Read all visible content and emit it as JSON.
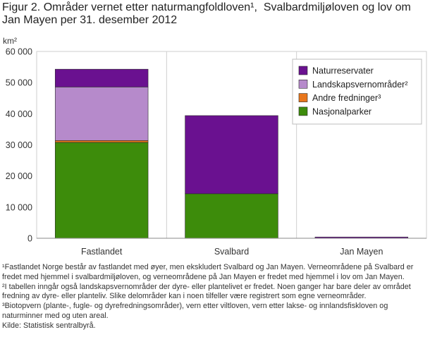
{
  "chart_data": {
    "type": "bar",
    "stacked": true,
    "title": "Figur 2. Områder vernet etter naturmangfoldloven¹,  Svalbardmiljøloven og lov om Jan Mayen per 31. desember 2012",
    "ylabel": "km²",
    "xlabel": "",
    "ylim": [
      0,
      60000
    ],
    "yticks": [
      "0",
      "10 000",
      "20 000",
      "30 000",
      "40 000",
      "50 000",
      "60 000"
    ],
    "categories": [
      "Fastlandet",
      "Svalbard",
      "Jan Mayen"
    ],
    "series": [
      {
        "name": "Nasjonalparker",
        "values": [
          30800,
          14300,
          0
        ],
        "color": "#3d8c0b"
      },
      {
        "name": "Andre fredninger³",
        "values": [
          600,
          0,
          0
        ],
        "color": "#e8761c"
      },
      {
        "name": "Landskapsvernområder²",
        "values": [
          17200,
          0,
          0
        ],
        "color": "#b68acb"
      },
      {
        "name": "Naturreservater",
        "values": [
          5700,
          25100,
          400
        ],
        "color": "#6a1190"
      }
    ],
    "legend_position": "top-right",
    "grid": false
  },
  "notes": [
    "¹Fastlandet Norge består av fastlandet med øyer, men ekskludert Svalbard og Jan Mayen. Verneområdene på Svalbard er fredet med hjemmel i svalbardmiljøloven, og verneområdene på Jan Mayen er fredet med hjemmel i lov om Jan Mayen.",
    "²I tabellen inngår også landskapsvernområder der dyre- eller plantelivet er fredet. Noen ganger har bare deler av området fredning av dyre- eller planteliv. Slike delområder kan i noen tilfeller være registrert som egne verneområder.",
    "³Biotopvern (plante-, fugle- og dyrefredningsområder), vern etter viltloven, vern etter lakse- og innlandsfiskloven og naturminner med og uten areal."
  ],
  "source": "Kilde: Statistisk sentralbyrå."
}
